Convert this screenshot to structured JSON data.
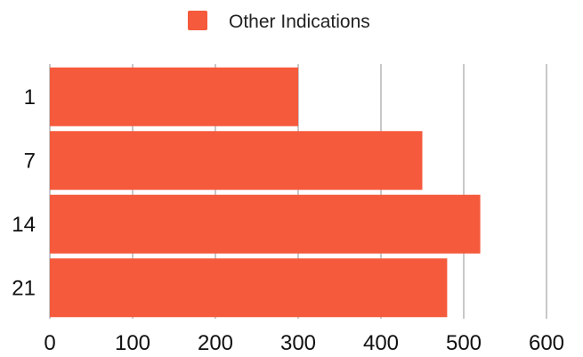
{
  "chart_data": {
    "type": "bar",
    "orientation": "horizontal",
    "categories": [
      "1",
      "7",
      "14",
      "21"
    ],
    "series": [
      {
        "name": "Other Indications",
        "values": [
          300,
          450,
          520,
          480
        ],
        "color": "#f55a3c"
      }
    ],
    "xlim": [
      0,
      600
    ],
    "x_ticks": [
      0,
      100,
      200,
      300,
      400,
      500,
      600
    ],
    "grid": true,
    "legend": "top"
  }
}
